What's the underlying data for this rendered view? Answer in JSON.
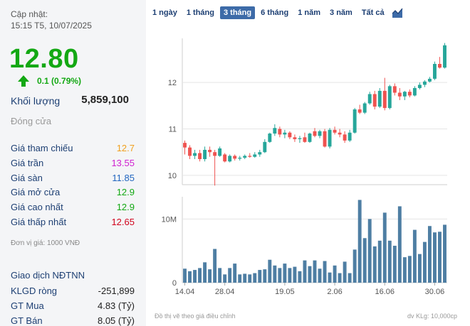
{
  "stock": {
    "updated_label": "Cập nhật:",
    "updated_time": "15:15 T5, 10/07/2025",
    "price": "12.80",
    "change": "0.1 (0.79%)",
    "volume_label": "Khối lượng",
    "volume_value": "5,859,100",
    "status": "Đóng cửa"
  },
  "prices": [
    {
      "label": "Giá tham chiếu",
      "value": "12.7",
      "color": "#f0a020"
    },
    {
      "label": "Giá trần",
      "value": "13.55",
      "color": "#d020d0"
    },
    {
      "label": "Giá sàn",
      "value": "11.85",
      "color": "#2266c0"
    },
    {
      "label": "Giá mở cửa",
      "value": "12.9",
      "color": "#13a813"
    },
    {
      "label": "Giá cao nhất",
      "value": "12.9",
      "color": "#13a813"
    },
    {
      "label": "Giá thấp nhất",
      "value": "12.65",
      "color": "#d0021b"
    }
  ],
  "unit_note": "Đơn vị giá: 1000 VNĐ",
  "foreign": {
    "title": "Giao dịch NĐTNN",
    "rows": [
      {
        "label": "KLGD ròng",
        "value": "-251,899"
      },
      {
        "label": "GT Mua",
        "value": "4.83 (Tỷ)"
      },
      {
        "label": "GT Bán",
        "value": "8.05 (Tỷ)"
      }
    ]
  },
  "tabs": [
    {
      "label": "1 ngày",
      "active": false
    },
    {
      "label": "1 tháng",
      "active": false
    },
    {
      "label": "3 tháng",
      "active": true
    },
    {
      "label": "6 tháng",
      "active": false
    },
    {
      "label": "1 năm",
      "active": false
    },
    {
      "label": "3 năm",
      "active": false
    },
    {
      "label": "Tất cả",
      "active": false
    }
  ],
  "tab_icon": "area-chart-icon",
  "chart_note": "Đồ thị vẽ theo giá điều chỉnh",
  "volume_unit": "dv KLg: 10,000cp",
  "chart_data": {
    "type": "candlestick",
    "price_ticks": [
      "10",
      "11",
      "12"
    ],
    "price_tick_values": [
      10,
      11,
      12
    ],
    "price_range": [
      9.8,
      12.95
    ],
    "volume_ticks": [
      "0",
      "10M"
    ],
    "volume_tick_values": [
      0,
      10
    ],
    "volume_range": [
      0,
      13.5
    ],
    "x_ticks": [
      {
        "label": "14.04",
        "index": 0
      },
      {
        "label": "28.04",
        "index": 8
      },
      {
        "label": "19.05",
        "index": 20
      },
      {
        "label": "2.06",
        "index": 30
      },
      {
        "label": "16.06",
        "index": 40
      },
      {
        "label": "30.06",
        "index": 50
      }
    ],
    "colors": {
      "up": "#26a69a",
      "down": "#ef5350",
      "volume": "#4e7ea3",
      "grid": "#e5e5e5"
    },
    "candles": [
      {
        "o": 10.7,
        "h": 10.75,
        "l": 10.45,
        "c": 10.6
      },
      {
        "o": 10.6,
        "h": 10.65,
        "l": 10.35,
        "c": 10.42
      },
      {
        "o": 10.42,
        "h": 10.55,
        "l": 10.35,
        "c": 10.48
      },
      {
        "o": 10.48,
        "h": 10.55,
        "l": 10.3,
        "c": 10.35
      },
      {
        "o": 10.35,
        "h": 10.62,
        "l": 10.3,
        "c": 10.55
      },
      {
        "o": 10.55,
        "h": 10.62,
        "l": 10.4,
        "c": 10.5
      },
      {
        "o": 10.5,
        "h": 10.55,
        "l": 9.78,
        "c": 10.42
      },
      {
        "o": 10.42,
        "h": 10.62,
        "l": 10.4,
        "c": 10.58
      },
      {
        "o": 10.45,
        "h": 10.48,
        "l": 10.28,
        "c": 10.3
      },
      {
        "o": 10.3,
        "h": 10.45,
        "l": 10.28,
        "c": 10.42
      },
      {
        "o": 10.42,
        "h": 10.45,
        "l": 10.32,
        "c": 10.36
      },
      {
        "o": 10.36,
        "h": 10.42,
        "l": 10.32,
        "c": 10.38
      },
      {
        "o": 10.38,
        "h": 10.45,
        "l": 10.35,
        "c": 10.42
      },
      {
        "o": 10.42,
        "h": 10.48,
        "l": 10.38,
        "c": 10.4
      },
      {
        "o": 10.4,
        "h": 10.5,
        "l": 10.38,
        "c": 10.45
      },
      {
        "o": 10.45,
        "h": 10.55,
        "l": 10.4,
        "c": 10.5
      },
      {
        "o": 10.5,
        "h": 10.78,
        "l": 10.48,
        "c": 10.72
      },
      {
        "o": 10.72,
        "h": 10.92,
        "l": 10.7,
        "c": 10.9
      },
      {
        "o": 10.9,
        "h": 11.1,
        "l": 10.85,
        "c": 11.02
      },
      {
        "o": 11.0,
        "h": 11.05,
        "l": 10.82,
        "c": 10.88
      },
      {
        "o": 10.88,
        "h": 10.98,
        "l": 10.8,
        "c": 10.92
      },
      {
        "o": 10.92,
        "h": 10.95,
        "l": 10.78,
        "c": 10.82
      },
      {
        "o": 10.82,
        "h": 10.88,
        "l": 10.72,
        "c": 10.78
      },
      {
        "o": 10.78,
        "h": 10.85,
        "l": 10.7,
        "c": 10.8
      },
      {
        "o": 10.82,
        "h": 10.92,
        "l": 10.7,
        "c": 10.72
      },
      {
        "o": 10.72,
        "h": 10.92,
        "l": 10.7,
        "c": 10.9
      },
      {
        "o": 10.95,
        "h": 11.02,
        "l": 10.82,
        "c": 10.85
      },
      {
        "o": 10.85,
        "h": 10.98,
        "l": 10.8,
        "c": 10.95
      },
      {
        "o": 10.95,
        "h": 11.0,
        "l": 10.6,
        "c": 10.62
      },
      {
        "o": 10.62,
        "h": 11.02,
        "l": 10.58,
        "c": 10.98
      },
      {
        "o": 10.98,
        "h": 11.05,
        "l": 10.88,
        "c": 10.92
      },
      {
        "o": 10.92,
        "h": 11.0,
        "l": 10.82,
        "c": 10.88
      },
      {
        "o": 10.88,
        "h": 10.95,
        "l": 10.7,
        "c": 10.75
      },
      {
        "o": 10.75,
        "h": 10.98,
        "l": 10.72,
        "c": 10.92
      },
      {
        "o": 10.92,
        "h": 11.45,
        "l": 10.9,
        "c": 11.42
      },
      {
        "o": 11.42,
        "h": 11.52,
        "l": 11.32,
        "c": 11.35
      },
      {
        "o": 11.35,
        "h": 11.58,
        "l": 11.32,
        "c": 11.55
      },
      {
        "o": 11.55,
        "h": 11.8,
        "l": 11.52,
        "c": 11.75
      },
      {
        "o": 11.75,
        "h": 11.82,
        "l": 11.42,
        "c": 11.48
      },
      {
        "o": 11.48,
        "h": 11.88,
        "l": 11.45,
        "c": 11.82
      },
      {
        "o": 11.82,
        "h": 12.1,
        "l": 11.4,
        "c": 11.45
      },
      {
        "o": 11.45,
        "h": 11.95,
        "l": 11.42,
        "c": 11.92
      },
      {
        "o": 11.92,
        "h": 11.98,
        "l": 11.72,
        "c": 11.78
      },
      {
        "o": 11.78,
        "h": 11.88,
        "l": 11.62,
        "c": 11.7
      },
      {
        "o": 11.7,
        "h": 11.82,
        "l": 11.62,
        "c": 11.8
      },
      {
        "o": 11.8,
        "h": 11.85,
        "l": 11.68,
        "c": 11.72
      },
      {
        "o": 11.72,
        "h": 11.92,
        "l": 11.7,
        "c": 11.88
      },
      {
        "o": 11.88,
        "h": 12.0,
        "l": 11.85,
        "c": 11.95
      },
      {
        "o": 11.95,
        "h": 12.05,
        "l": 11.9,
        "c": 12.02
      },
      {
        "o": 12.02,
        "h": 12.12,
        "l": 12.0,
        "c": 12.08
      },
      {
        "o": 12.08,
        "h": 12.45,
        "l": 12.05,
        "c": 12.4
      },
      {
        "o": 12.4,
        "h": 12.55,
        "l": 12.3,
        "c": 12.32
      },
      {
        "o": 12.32,
        "h": 12.85,
        "l": 12.3,
        "c": 12.8
      }
    ],
    "volumes": [
      2.2,
      1.8,
      2.0,
      2.3,
      3.2,
      2.1,
      5.3,
      2.3,
      1.3,
      2.3,
      3.0,
      1.3,
      1.4,
      1.3,
      1.5,
      2.0,
      2.1,
      3.6,
      2.7,
      2.3,
      3.0,
      2.3,
      2.5,
      1.8,
      3.5,
      2.6,
      3.5,
      2.2,
      3.4,
      1.6,
      2.7,
      1.5,
      3.3,
      1.5,
      5.2,
      13.0,
      7.0,
      10.0,
      5.7,
      6.6,
      11.0,
      6.6,
      5.8,
      12.0,
      4.0,
      4.2,
      8.3,
      4.5,
      6.4,
      8.9,
      7.9,
      8.0,
      9.1
    ]
  }
}
